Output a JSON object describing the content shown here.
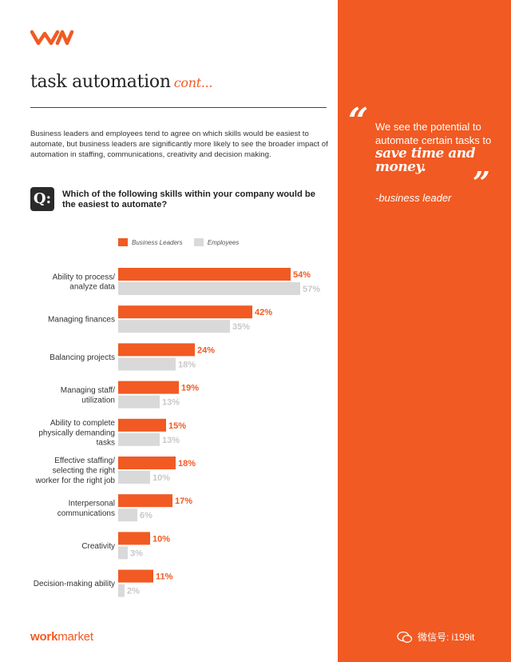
{
  "brand": {
    "accent": "#f15a22",
    "gray": "#d9d9d9",
    "logo_text_bold": "work",
    "logo_text_light": "market"
  },
  "page": {
    "title": "task automation",
    "title_cont": "cont..."
  },
  "intro": "Business leaders and employees tend to agree on which skills would be easiest to automate, but business leaders are significantly more likely to see the broader impact of automation in staffing, communications, creativity and decision making.",
  "question": {
    "badge": "Q:",
    "text": "Which of the following skills within your company would be the easiest to automate?"
  },
  "quote": {
    "lead": "We see the potential to automate certain tasks to",
    "emphasis": "save time and money.",
    "attribution": "-business leader"
  },
  "watermark": {
    "icon": "wechat-icon",
    "text": "微信号: i199it"
  },
  "chart_data": {
    "type": "bar",
    "orientation": "horizontal",
    "categories": [
      "Ability to process/ analyze data",
      "Managing finances",
      "Balancing projects",
      "Managing staff/ utilization",
      "Ability to complete physically demanding tasks",
      "Effective staffing/ selecting the right worker for the right job",
      "Interpersonal communications",
      "Creativity",
      "Decision-making ability"
    ],
    "series": [
      {
        "name": "Business Leaders",
        "color": "#f15a22",
        "values": [
          54,
          42,
          24,
          19,
          15,
          18,
          17,
          10,
          11
        ]
      },
      {
        "name": "Employees",
        "color": "#d9d9d9",
        "values": [
          57,
          35,
          18,
          13,
          13,
          10,
          6,
          3,
          2
        ]
      }
    ],
    "value_suffix": "%",
    "legend_position": "top",
    "grid": false
  }
}
